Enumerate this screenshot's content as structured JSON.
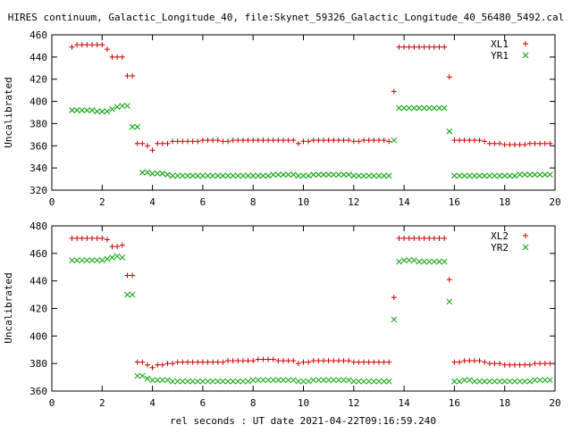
{
  "figure": {
    "title": "HIRES continuum, Galactic_Longitude_40, file:Skynet_59326_Galactic_Longitude_40_56480_5492.cal",
    "xlabel": "rel seconds : UT date 2021-04-22T09:16:59.240"
  },
  "chart_data": [
    {
      "type": "scatter",
      "ylabel": "Uncalibrated",
      "xlim": [
        0,
        20
      ],
      "ylim": [
        320,
        460
      ],
      "xticks": [
        0,
        2,
        4,
        6,
        8,
        10,
        12,
        14,
        16,
        18,
        20
      ],
      "yticks": [
        320,
        340,
        360,
        380,
        400,
        420,
        440,
        460
      ],
      "legend_position": "top-right",
      "grid": false,
      "series": [
        {
          "name": "XL1",
          "marker": "plus",
          "color": "#cc0000",
          "x": [
            0.8,
            1.0,
            1.2,
            1.4,
            1.6,
            1.8,
            2.0,
            2.2,
            2.4,
            2.6,
            2.8,
            3.0,
            3.2,
            3.4,
            3.6,
            3.8,
            4.0,
            4.2,
            4.4,
            4.6,
            4.8,
            5.0,
            5.2,
            5.4,
            5.6,
            5.8,
            6.0,
            6.2,
            6.4,
            6.6,
            6.8,
            7.0,
            7.2,
            7.4,
            7.6,
            7.8,
            8.0,
            8.2,
            8.4,
            8.6,
            8.8,
            9.0,
            9.2,
            9.4,
            9.6,
            9.8,
            10.0,
            10.2,
            10.4,
            10.6,
            10.8,
            11.0,
            11.2,
            11.4,
            11.6,
            11.8,
            12.0,
            12.2,
            12.4,
            12.6,
            12.8,
            13.0,
            13.2,
            13.4,
            13.6,
            13.8,
            14.0,
            14.2,
            14.4,
            14.6,
            14.8,
            15.0,
            15.2,
            15.4,
            15.6,
            15.8,
            16.0,
            16.2,
            16.4,
            16.6,
            16.8,
            17.0,
            17.2,
            17.4,
            17.6,
            17.8,
            18.0,
            18.2,
            18.4,
            18.6,
            18.8,
            19.0,
            19.2,
            19.4,
            19.6,
            19.8
          ],
          "y": [
            449,
            451,
            451,
            451,
            451,
            451,
            451,
            447,
            440,
            440,
            440,
            423,
            423,
            362,
            362,
            360,
            356,
            362,
            362,
            362,
            364,
            364,
            364,
            364,
            364,
            364,
            365,
            365,
            365,
            365,
            364,
            364,
            365,
            365,
            365,
            365,
            365,
            365,
            365,
            365,
            365,
            365,
            365,
            365,
            365,
            362,
            364,
            364,
            365,
            365,
            365,
            365,
            365,
            365,
            365,
            365,
            364,
            364,
            365,
            365,
            365,
            365,
            365,
            364,
            409,
            449,
            449,
            449,
            449,
            449,
            449,
            449,
            449,
            449,
            449,
            422,
            365,
            365,
            365,
            365,
            365,
            365,
            364,
            362,
            362,
            362,
            361,
            361,
            361,
            361,
            361,
            362,
            362,
            362,
            362,
            362
          ]
        },
        {
          "name": "YR1",
          "marker": "cross",
          "color": "#00a000",
          "x": [
            0.8,
            1.0,
            1.2,
            1.4,
            1.6,
            1.8,
            2.0,
            2.2,
            2.4,
            2.6,
            2.8,
            3.0,
            3.2,
            3.4,
            3.6,
            3.8,
            4.0,
            4.2,
            4.4,
            4.6,
            4.8,
            5.0,
            5.2,
            5.4,
            5.6,
            5.8,
            6.0,
            6.2,
            6.4,
            6.6,
            6.8,
            7.0,
            7.2,
            7.4,
            7.6,
            7.8,
            8.0,
            8.2,
            8.4,
            8.6,
            8.8,
            9.0,
            9.2,
            9.4,
            9.6,
            9.8,
            10.0,
            10.2,
            10.4,
            10.6,
            10.8,
            11.0,
            11.2,
            11.4,
            11.6,
            11.8,
            12.0,
            12.2,
            12.4,
            12.6,
            12.8,
            13.0,
            13.2,
            13.4,
            13.6,
            13.8,
            14.0,
            14.2,
            14.4,
            14.6,
            14.8,
            15.0,
            15.2,
            15.4,
            15.6,
            15.8,
            16.0,
            16.2,
            16.4,
            16.6,
            16.8,
            17.0,
            17.2,
            17.4,
            17.6,
            17.8,
            18.0,
            18.2,
            18.4,
            18.6,
            18.8,
            19.0,
            19.2,
            19.4,
            19.6,
            19.8
          ],
          "y": [
            392,
            392,
            392,
            392,
            392,
            391,
            391,
            391,
            393,
            395,
            396,
            396,
            377,
            377,
            336,
            336,
            335,
            335,
            335,
            334,
            333,
            333,
            333,
            333,
            333,
            333,
            333,
            333,
            333,
            333,
            333,
            333,
            333,
            333,
            333,
            333,
            333,
            333,
            333,
            333,
            334,
            334,
            334,
            334,
            334,
            333,
            333,
            333,
            334,
            334,
            334,
            334,
            334,
            334,
            334,
            334,
            333,
            333,
            333,
            333,
            333,
            333,
            333,
            333,
            365,
            394,
            394,
            394,
            394,
            394,
            394,
            394,
            394,
            394,
            394,
            373,
            333,
            333,
            333,
            333,
            333,
            333,
            333,
            333,
            333,
            333,
            333,
            333,
            333,
            334,
            334,
            334,
            334,
            334,
            334,
            334
          ]
        }
      ]
    },
    {
      "type": "scatter",
      "ylabel": "Uncalibrated",
      "xlim": [
        0,
        20
      ],
      "ylim": [
        360,
        480
      ],
      "xticks": [
        0,
        2,
        4,
        6,
        8,
        10,
        12,
        14,
        16,
        18,
        20
      ],
      "yticks": [
        360,
        380,
        400,
        420,
        440,
        460,
        480
      ],
      "legend_position": "top-right",
      "grid": false,
      "series": [
        {
          "name": "XL2",
          "marker": "plus",
          "color": "#cc0000",
          "x": [
            0.8,
            1.0,
            1.2,
            1.4,
            1.6,
            1.8,
            2.0,
            2.2,
            2.4,
            2.6,
            2.8,
            3.0,
            3.2,
            3.4,
            3.6,
            3.8,
            4.0,
            4.2,
            4.4,
            4.6,
            4.8,
            5.0,
            5.2,
            5.4,
            5.6,
            5.8,
            6.0,
            6.2,
            6.4,
            6.6,
            6.8,
            7.0,
            7.2,
            7.4,
            7.6,
            7.8,
            8.0,
            8.2,
            8.4,
            8.6,
            8.8,
            9.0,
            9.2,
            9.4,
            9.6,
            9.8,
            10.0,
            10.2,
            10.4,
            10.6,
            10.8,
            11.0,
            11.2,
            11.4,
            11.6,
            11.8,
            12.0,
            12.2,
            12.4,
            12.6,
            12.8,
            13.0,
            13.2,
            13.4,
            13.6,
            13.8,
            14.0,
            14.2,
            14.4,
            14.6,
            14.8,
            15.0,
            15.2,
            15.4,
            15.6,
            15.8,
            16.0,
            16.2,
            16.4,
            16.6,
            16.8,
            17.0,
            17.2,
            17.4,
            17.6,
            17.8,
            18.0,
            18.2,
            18.4,
            18.6,
            18.8,
            19.0,
            19.2,
            19.4,
            19.6,
            19.8
          ],
          "y": [
            471,
            471,
            471,
            471,
            471,
            471,
            471,
            470,
            465,
            465,
            466,
            444,
            444,
            381,
            381,
            379,
            377,
            379,
            379,
            380,
            380,
            381,
            381,
            381,
            381,
            381,
            381,
            381,
            381,
            381,
            381,
            382,
            382,
            382,
            382,
            382,
            382,
            383,
            383,
            383,
            383,
            382,
            382,
            382,
            382,
            380,
            381,
            381,
            382,
            382,
            382,
            382,
            382,
            382,
            382,
            382,
            381,
            381,
            381,
            381,
            381,
            381,
            381,
            381,
            428,
            471,
            471,
            471,
            471,
            471,
            471,
            471,
            471,
            471,
            471,
            441,
            381,
            381,
            382,
            382,
            382,
            382,
            381,
            380,
            380,
            380,
            379,
            379,
            379,
            379,
            379,
            379,
            380,
            380,
            380,
            380
          ]
        },
        {
          "name": "YR2",
          "marker": "cross",
          "color": "#00a000",
          "x": [
            0.8,
            1.0,
            1.2,
            1.4,
            1.6,
            1.8,
            2.0,
            2.2,
            2.4,
            2.6,
            2.8,
            3.0,
            3.2,
            3.4,
            3.6,
            3.8,
            4.0,
            4.2,
            4.4,
            4.6,
            4.8,
            5.0,
            5.2,
            5.4,
            5.6,
            5.8,
            6.0,
            6.2,
            6.4,
            6.6,
            6.8,
            7.0,
            7.2,
            7.4,
            7.6,
            7.8,
            8.0,
            8.2,
            8.4,
            8.6,
            8.8,
            9.0,
            9.2,
            9.4,
            9.6,
            9.8,
            10.0,
            10.2,
            10.4,
            10.6,
            10.8,
            11.0,
            11.2,
            11.4,
            11.6,
            11.8,
            12.0,
            12.2,
            12.4,
            12.6,
            12.8,
            13.0,
            13.2,
            13.4,
            13.6,
            13.8,
            14.0,
            14.2,
            14.4,
            14.6,
            14.8,
            15.0,
            15.2,
            15.4,
            15.6,
            15.8,
            16.0,
            16.2,
            16.4,
            16.6,
            16.8,
            17.0,
            17.2,
            17.4,
            17.6,
            17.8,
            18.0,
            18.2,
            18.4,
            18.6,
            18.8,
            19.0,
            19.2,
            19.4,
            19.6,
            19.8
          ],
          "y": [
            455,
            455,
            455,
            455,
            455,
            455,
            455,
            456,
            457,
            458,
            457,
            430,
            430,
            371,
            371,
            369,
            368,
            368,
            368,
            368,
            367,
            367,
            367,
            367,
            367,
            367,
            367,
            367,
            367,
            367,
            367,
            367,
            367,
            367,
            367,
            367,
            368,
            368,
            368,
            368,
            368,
            368,
            368,
            368,
            368,
            367,
            367,
            367,
            368,
            368,
            368,
            368,
            368,
            368,
            368,
            368,
            367,
            367,
            367,
            367,
            367,
            367,
            367,
            367,
            412,
            454,
            455,
            455,
            455,
            454,
            454,
            454,
            454,
            454,
            454,
            425,
            367,
            367,
            368,
            368,
            367,
            367,
            367,
            367,
            367,
            367,
            367,
            367,
            367,
            367,
            367,
            367,
            368,
            368,
            368,
            368
          ]
        }
      ]
    }
  ]
}
